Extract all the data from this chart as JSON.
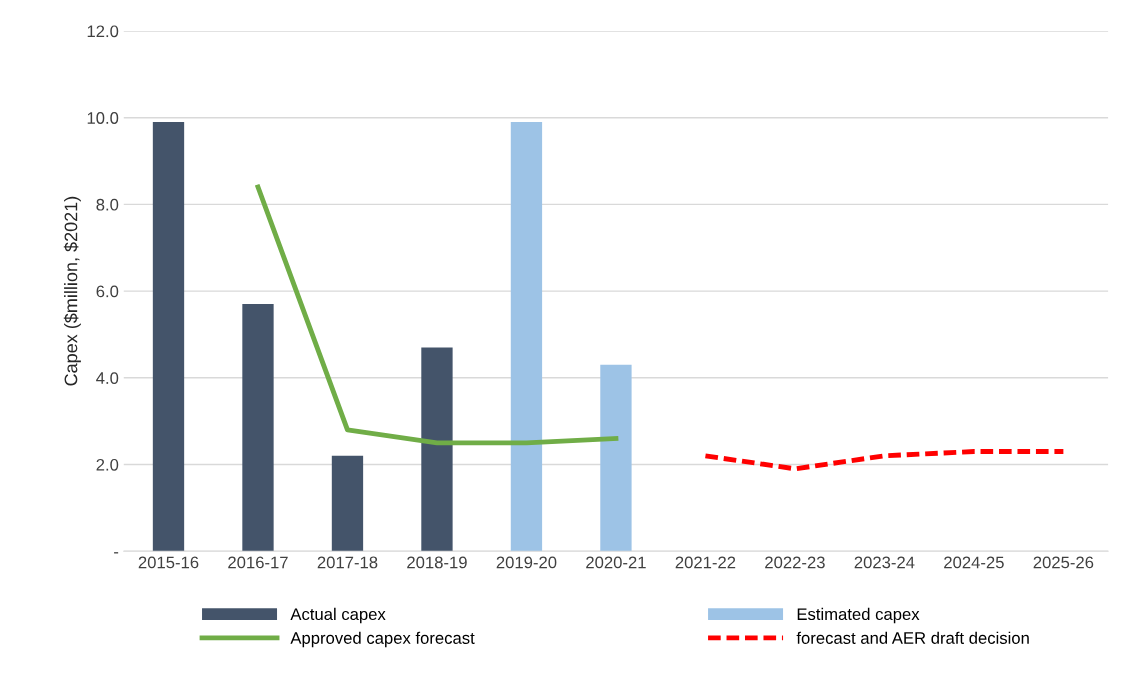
{
  "chart_data": {
    "type": "bar",
    "ylabel": "Capex ($million, $2021)",
    "categories": [
      "2015-16",
      "2016-17",
      "2017-18",
      "2018-19",
      "2019-20",
      "2020-21",
      "2021-22",
      "2022-23",
      "2023-24",
      "2024-25",
      "2025-26"
    ],
    "series": [
      {
        "name": "Actual capex",
        "color": "#44546a",
        "values": [
          9.9,
          5.7,
          2.2,
          4.7,
          null,
          null,
          null,
          null,
          null,
          null,
          null
        ]
      },
      {
        "name": "Estimated capex",
        "color": "#9dc3e6",
        "values": [
          null,
          null,
          null,
          null,
          9.9,
          4.3,
          null,
          null,
          null,
          null,
          null
        ]
      },
      {
        "name": "Approved capex forecast",
        "type": "line",
        "line_style": "solid",
        "color": "#70ad47",
        "values": [
          null,
          8.4,
          2.8,
          2.5,
          2.5,
          2.6,
          null,
          null,
          null,
          null,
          null
        ]
      },
      {
        "name": "forecast and AER draft decision",
        "type": "line",
        "line_style": "dashed",
        "color": "#ff0000",
        "values": [
          null,
          null,
          null,
          null,
          null,
          null,
          2.2,
          1.9,
          2.2,
          2.3,
          2.3
        ]
      }
    ],
    "ylim": [
      0,
      12
    ],
    "yticks": [
      {
        "value": 0,
        "label": "-"
      },
      {
        "value": 2,
        "label": "2.0"
      },
      {
        "value": 4,
        "label": "4.0"
      },
      {
        "value": 6,
        "label": "6.0"
      },
      {
        "value": 8,
        "label": "8.0"
      },
      {
        "value": 10,
        "label": "10.0"
      },
      {
        "value": 12,
        "label": "12.0"
      }
    ],
    "grid": "y",
    "legend": "bottom",
    "marker": "none"
  }
}
